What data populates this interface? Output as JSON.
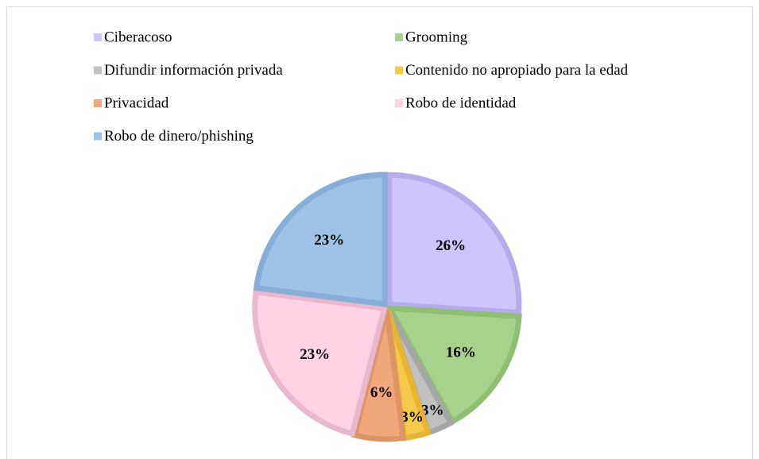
{
  "chart_data": {
    "type": "pie",
    "categories": [
      "Ciberacoso",
      "Grooming",
      "Difundir información privada",
      "Contenido no apropiado para la edad",
      "Privacidad",
      "Robo de identidad",
      "Robo de dinero/phishing"
    ],
    "values": [
      26,
      16,
      3,
      3,
      6,
      23,
      23
    ],
    "value_labels": [
      "26%",
      "16%",
      "3%",
      "3%",
      "6%",
      "23%",
      "23%"
    ],
    "colors": [
      "#ccc6fd",
      "#a9d18e",
      "#c0c0c0",
      "#f5c94a",
      "#f2a67c",
      "#ffd3e4",
      "#9fc3e6"
    ],
    "edge_colors": [
      "#b6acec",
      "#8fbf72",
      "#a6a6a6",
      "#e8b530",
      "#dd9566",
      "#e9b8ce",
      "#86aed6"
    ],
    "legend": "top"
  }
}
